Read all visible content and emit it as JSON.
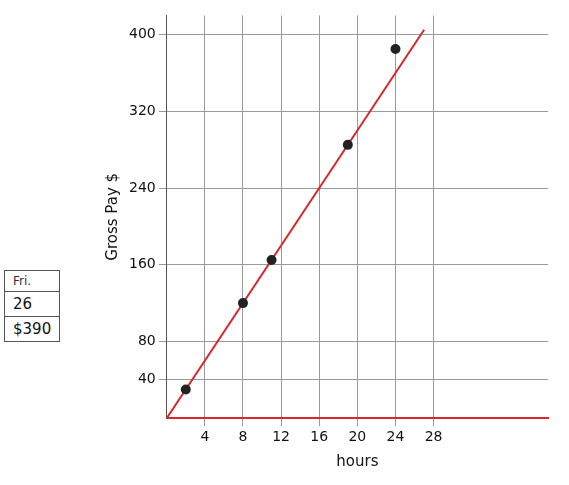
{
  "chart_data": {
    "type": "scatter",
    "x_label": "hours",
    "y_label": "Gross Pay $",
    "series": [
      {
        "type": "scatter",
        "color": "#222222",
        "marker": "circle",
        "x": [
          2,
          8,
          11,
          19,
          24
        ],
        "values": [
          30,
          120,
          165,
          285,
          385
        ]
      },
      {
        "type": "line",
        "color": "#d9262b",
        "marker": "none",
        "x": [
          0,
          27
        ],
        "values": [
          0,
          405
        ]
      }
    ],
    "xlim": [
      0,
      40
    ],
    "xticks": [
      4,
      8,
      12,
      16,
      20,
      24,
      28
    ],
    "ylim": [
      0,
      420
    ],
    "yticks": [
      40,
      80,
      160,
      240,
      320,
      400
    ],
    "grid": true
  },
  "table": {
    "header": [
      "Fri."
    ],
    "rows": [
      [
        "26"
      ],
      [
        "$390"
      ]
    ]
  }
}
